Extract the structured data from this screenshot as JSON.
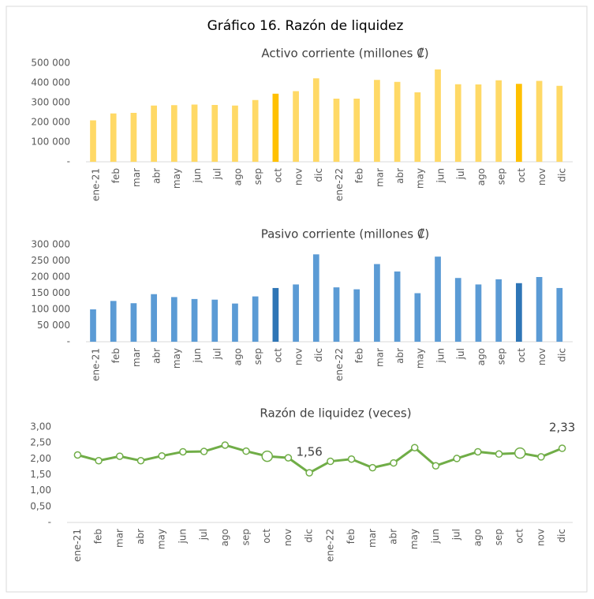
{
  "title": "Gráfico 16. Razón de liquidez",
  "chart_data": [
    {
      "type": "bar",
      "title": "Activo corriente (millones ₡)",
      "categories": [
        "ene-21",
        "feb",
        "mar",
        "abr",
        "may",
        "jun",
        "jul",
        "ago",
        "sep",
        "oct",
        "nov",
        "dic",
        "ene-22",
        "feb",
        "mar",
        "abr",
        "may",
        "jun",
        "jul",
        "ago",
        "sep",
        "oct",
        "nov",
        "dic"
      ],
      "values": [
        210000,
        245000,
        248000,
        285000,
        287000,
        290000,
        288000,
        285000,
        313000,
        345000,
        358000,
        423000,
        320000,
        320000,
        415000,
        405000,
        352000,
        468000,
        393000,
        392000,
        413000,
        395000,
        410000,
        385000
      ],
      "colors": [
        "#FFD966",
        "#FFD966",
        "#FFD966",
        "#FFD966",
        "#FFD966",
        "#FFD966",
        "#FFD966",
        "#FFD966",
        "#FFD966",
        "#FFC000",
        "#FFD966",
        "#FFD966",
        "#FFD966",
        "#FFD966",
        "#FFD966",
        "#FFD966",
        "#FFD966",
        "#FFD966",
        "#FFD966",
        "#FFD966",
        "#FFD966",
        "#FFC000",
        "#FFD966",
        "#FFD966"
      ],
      "ylim": [
        0,
        500000
      ],
      "yticks": [
        {
          "value": 0,
          "label": "-"
        },
        {
          "value": 100000,
          "label": "100 000"
        },
        {
          "value": 200000,
          "label": "200 000"
        },
        {
          "value": 300000,
          "label": "300 000"
        },
        {
          "value": 400000,
          "label": "400 000"
        },
        {
          "value": 500000,
          "label": "500 000"
        }
      ]
    },
    {
      "type": "bar",
      "title": "Pasivo corriente (millones ₡)",
      "categories": [
        "ene-21",
        "feb",
        "mar",
        "abr",
        "may",
        "jun",
        "jul",
        "ago",
        "sep",
        "oct",
        "nov",
        "dic",
        "ene-22",
        "feb",
        "mar",
        "abr",
        "may",
        "jun",
        "jul",
        "ago",
        "sep",
        "oct",
        "nov",
        "dic"
      ],
      "values": [
        100000,
        126000,
        119000,
        147000,
        138000,
        132000,
        130000,
        118000,
        140000,
        166000,
        177000,
        270000,
        168000,
        162000,
        240000,
        217000,
        150000,
        263000,
        197000,
        177000,
        193000,
        181000,
        200000,
        166000
      ],
      "colors": [
        "#5B9BD5",
        "#5B9BD5",
        "#5B9BD5",
        "#5B9BD5",
        "#5B9BD5",
        "#5B9BD5",
        "#5B9BD5",
        "#5B9BD5",
        "#5B9BD5",
        "#2E75B6",
        "#5B9BD5",
        "#5B9BD5",
        "#5B9BD5",
        "#5B9BD5",
        "#5B9BD5",
        "#5B9BD5",
        "#5B9BD5",
        "#5B9BD5",
        "#5B9BD5",
        "#5B9BD5",
        "#5B9BD5",
        "#2E75B6",
        "#5B9BD5",
        "#5B9BD5"
      ],
      "ylim": [
        0,
        300000
      ],
      "yticks": [
        {
          "value": 0,
          "label": "-"
        },
        {
          "value": 50000,
          "label": "50 000"
        },
        {
          "value": 100000,
          "label": "100 000"
        },
        {
          "value": 150000,
          "label": "150 000"
        },
        {
          "value": 200000,
          "label": "200 000"
        },
        {
          "value": 250000,
          "label": "250 000"
        },
        {
          "value": 300000,
          "label": "300 000"
        }
      ]
    },
    {
      "type": "line",
      "title": "Razón de liquidez (veces)",
      "categories": [
        "ene-21",
        "feb",
        "mar",
        "abr",
        "may",
        "jun",
        "jul",
        "ago",
        "sep",
        "oct",
        "nov",
        "dic",
        "ene-22",
        "feb",
        "mar",
        "abr",
        "may",
        "jun",
        "jul",
        "ago",
        "sep",
        "oct",
        "nov",
        "dic"
      ],
      "values": [
        2.12,
        1.94,
        2.08,
        1.94,
        2.09,
        2.22,
        2.23,
        2.43,
        2.24,
        2.08,
        2.03,
        1.56,
        1.92,
        1.99,
        1.72,
        1.87,
        2.35,
        1.78,
        2.01,
        2.22,
        2.15,
        2.18,
        2.06,
        2.33
      ],
      "value_labels": [
        null,
        null,
        null,
        null,
        null,
        null,
        null,
        null,
        null,
        null,
        null,
        "1,56",
        null,
        null,
        null,
        null,
        null,
        null,
        null,
        null,
        null,
        null,
        null,
        "2,33"
      ],
      "highlight": [
        9,
        21
      ],
      "color": "#70AD47",
      "ylim": [
        0,
        3
      ],
      "yticks": [
        {
          "value": 0,
          "label": "-"
        },
        {
          "value": 0.5,
          "label": "0,50"
        },
        {
          "value": 1,
          "label": "1,00"
        },
        {
          "value": 1.5,
          "label": "1,50"
        },
        {
          "value": 2,
          "label": "2,00"
        },
        {
          "value": 2.5,
          "label": "2,50"
        },
        {
          "value": 3,
          "label": "3,00"
        }
      ]
    }
  ]
}
